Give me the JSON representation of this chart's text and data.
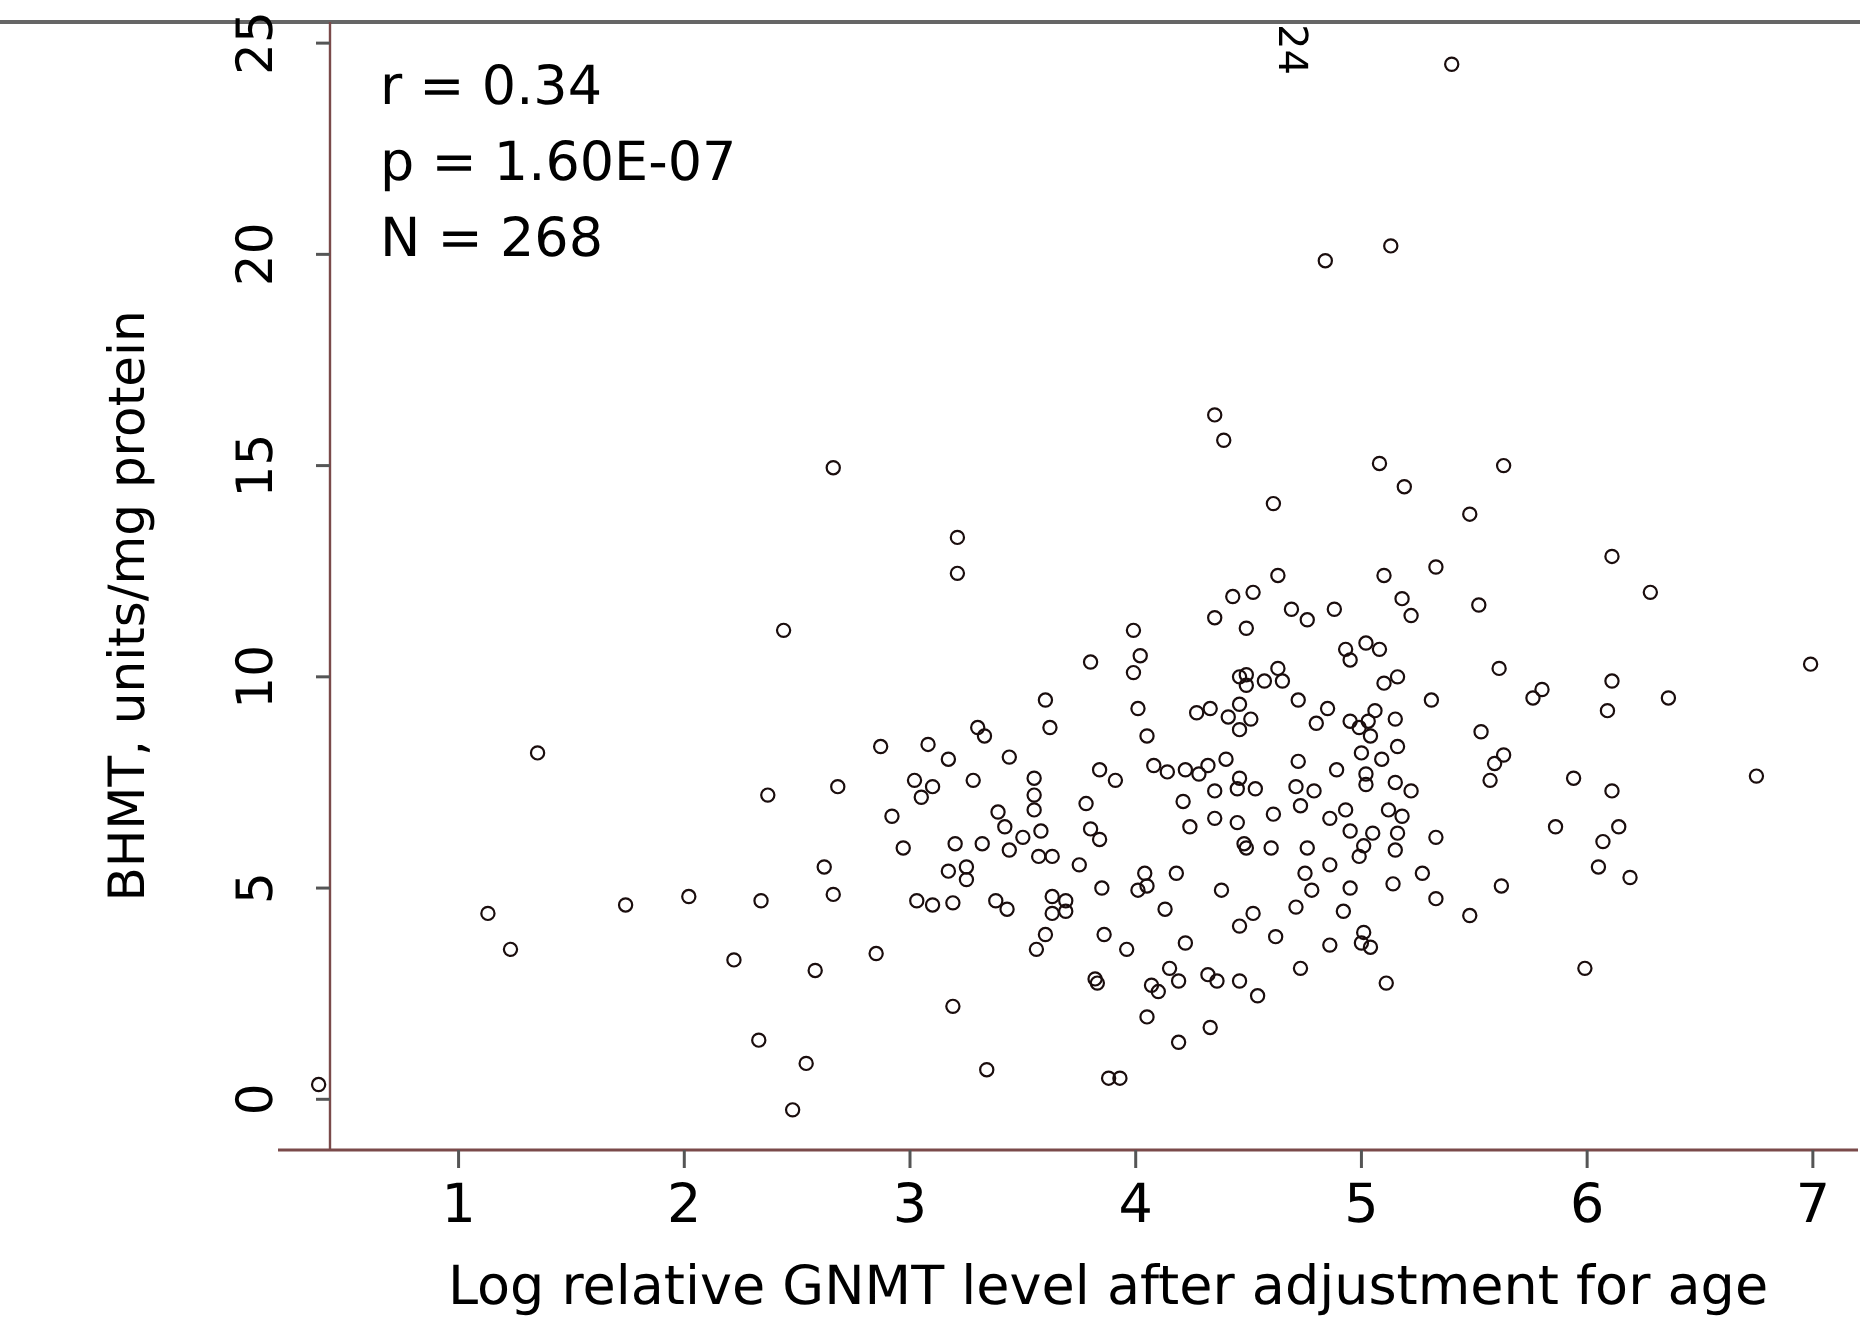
{
  "chart_data": {
    "type": "scatter",
    "xlabel": "Log relative GNMT level after adjustment for age",
    "ylabel": "BHMT, units/mg protein",
    "annotations": [
      "r = 0.34",
      "p = 1.60E-07",
      "N = 268",
      "24"
    ],
    "xlim": [
      0.2,
      7.2
    ],
    "xticks": [
      1,
      2,
      3,
      4,
      5,
      6,
      7
    ],
    "ylim": [
      -1.2,
      25.5
    ],
    "yticks": [
      0,
      5,
      10,
      15,
      20,
      25
    ],
    "grid": false,
    "marker": "circle",
    "series": [
      {
        "color": "#1a0d0d",
        "x": [
          2.66,
          3.21,
          3.21,
          2.44,
          5.4,
          5.13,
          4.84,
          4.35,
          4.39,
          5.08,
          5.63,
          4.61,
          5.19,
          5.48,
          6.11,
          6.28,
          5.33,
          5.1,
          4.63,
          4.43,
          4.52,
          4.35,
          4.49,
          4.69,
          4.76,
          4.88,
          5.18,
          5.22,
          5.52,
          3.99,
          4.02,
          3.99,
          3.8,
          3.6,
          3.62,
          4.01,
          4.05,
          2.87,
          3.08,
          3.3,
          3.33,
          3.17,
          3.44,
          3.02,
          3.1,
          3.05,
          3.28,
          3.55,
          3.55,
          2.92,
          3.39,
          3.42,
          3.55,
          2.97,
          3.2,
          3.32,
          3.17,
          3.25,
          3.25,
          3.5,
          3.44,
          3.57,
          3.63,
          3.58,
          3.75,
          3.78,
          3.8,
          3.84,
          3.84,
          3.91,
          3.03,
          3.1,
          3.19,
          3.38,
          3.43,
          3.63,
          3.69,
          3.63,
          3.69,
          3.6,
          3.56,
          3.85,
          3.86,
          4.04,
          4.01,
          4.05,
          4.18,
          4.13,
          3.96,
          4.22,
          3.82,
          3.83,
          2.85,
          3.19,
          3.34,
          3.88,
          3.93,
          4.07,
          4.1,
          4.05,
          4.19,
          4.15,
          4.19,
          4.32,
          4.36,
          4.33,
          4.46,
          4.54,
          4.46,
          4.52,
          4.62,
          4.38,
          4.08,
          4.14,
          4.22,
          4.28,
          4.32,
          4.4,
          4.21,
          4.24,
          4.35,
          4.45,
          4.48,
          4.49,
          4.6,
          4.61,
          4.35,
          4.45,
          4.53,
          4.46,
          4.27,
          4.33,
          4.41,
          4.46,
          4.51,
          4.46,
          4.46,
          4.49,
          4.49,
          4.57,
          4.63,
          4.65,
          4.72,
          4.8,
          4.85,
          4.89,
          4.72,
          4.71,
          4.79,
          4.73,
          4.86,
          4.76,
          4.75,
          4.78,
          4.86,
          4.71,
          4.92,
          4.86,
          4.73,
          6.99,
          6.75,
          6.36,
          6.11,
          6.09,
          5.8,
          5.76,
          5.61,
          5.31,
          5.53,
          5.63,
          5.59,
          5.57,
          5.94,
          6.11,
          5.86,
          6.14,
          6.07,
          6.05,
          6.19,
          5.62,
          5.48,
          5.33,
          5.27,
          5.33,
          5.99,
          5.11,
          5.04,
          5.0,
          5.01,
          4.95,
          5.14,
          4.99,
          5.01,
          5.05,
          4.95,
          4.93,
          5.12,
          5.18,
          5.16,
          5.15,
          5.22,
          5.15,
          5.02,
          5.02,
          5.09,
          5.0,
          5.16,
          5.04,
          4.99,
          4.95,
          5.03,
          5.15,
          5.06,
          5.1,
          5.16,
          4.93,
          4.95,
          5.02,
          5.08,
          0.38,
          1.35,
          1.13,
          1.23,
          1.74,
          2.02,
          2.37,
          2.68,
          2.62,
          2.66,
          2.34,
          2.22,
          2.58,
          2.33,
          2.54,
          2.48
        ],
        "values": [
          14.95,
          13.3,
          12.45,
          11.1,
          24.5,
          20.2,
          19.85,
          16.2,
          15.6,
          15.05,
          15.0,
          14.1,
          14.5,
          13.85,
          12.85,
          12.0,
          12.6,
          12.4,
          12.4,
          11.9,
          12.0,
          11.4,
          11.15,
          11.6,
          11.35,
          11.6,
          11.85,
          11.45,
          11.7,
          11.1,
          10.5,
          10.1,
          10.35,
          9.45,
          8.8,
          9.25,
          8.6,
          8.35,
          8.4,
          8.8,
          8.6,
          8.05,
          8.1,
          7.55,
          7.4,
          7.15,
          7.55,
          7.6,
          7.2,
          6.7,
          6.8,
          6.45,
          6.85,
          5.95,
          6.05,
          6.05,
          5.4,
          5.5,
          5.2,
          6.2,
          5.9,
          5.75,
          5.75,
          6.35,
          5.55,
          7.0,
          6.4,
          6.15,
          7.8,
          7.55,
          4.7,
          4.6,
          4.65,
          4.7,
          4.5,
          4.8,
          4.7,
          4.4,
          4.45,
          3.9,
          3.55,
          5.0,
          3.9,
          5.35,
          4.95,
          5.05,
          5.35,
          4.5,
          3.55,
          3.7,
          2.85,
          2.75,
          3.45,
          2.2,
          0.7,
          0.5,
          0.5,
          2.7,
          2.55,
          1.95,
          1.35,
          3.1,
          2.8,
          2.95,
          2.8,
          1.7,
          2.8,
          2.45,
          4.1,
          4.4,
          3.85,
          4.95,
          7.9,
          7.75,
          7.8,
          7.7,
          7.9,
          8.05,
          7.05,
          6.45,
          6.65,
          6.55,
          6.05,
          5.95,
          5.95,
          6.75,
          7.3,
          7.35,
          7.35,
          7.6,
          9.15,
          9.25,
          9.05,
          8.75,
          9.0,
          9.35,
          10.0,
          10.05,
          9.8,
          9.9,
          10.2,
          9.9,
          9.45,
          8.9,
          9.25,
          7.8,
          8.0,
          7.4,
          7.3,
          6.95,
          6.65,
          5.95,
          5.35,
          4.95,
          5.55,
          4.55,
          4.45,
          3.65,
          3.1,
          10.3,
          7.65,
          9.5,
          9.9,
          9.2,
          9.7,
          9.5,
          10.2,
          9.45,
          8.7,
          8.15,
          7.95,
          7.55,
          7.6,
          7.3,
          6.45,
          6.45,
          6.1,
          5.5,
          5.25,
          5.05,
          4.35,
          4.75,
          5.35,
          6.2,
          3.1,
          2.75,
          3.6,
          3.7,
          3.95,
          5.0,
          5.1,
          5.75,
          6.0,
          6.3,
          6.35,
          6.85,
          6.85,
          6.7,
          6.3,
          5.9,
          7.3,
          7.5,
          7.45,
          7.7,
          8.05,
          8.2,
          8.35,
          8.6,
          8.8,
          8.95,
          8.95,
          9.0,
          9.2,
          9.85,
          10.0,
          10.65,
          10.4,
          10.8,
          10.65,
          0.35,
          8.2,
          4.4,
          3.55,
          4.6,
          4.8,
          7.2,
          7.4,
          5.5,
          4.85,
          4.7,
          3.3,
          3.05,
          1.4,
          0.85,
          -0.25
        ]
      }
    ]
  }
}
